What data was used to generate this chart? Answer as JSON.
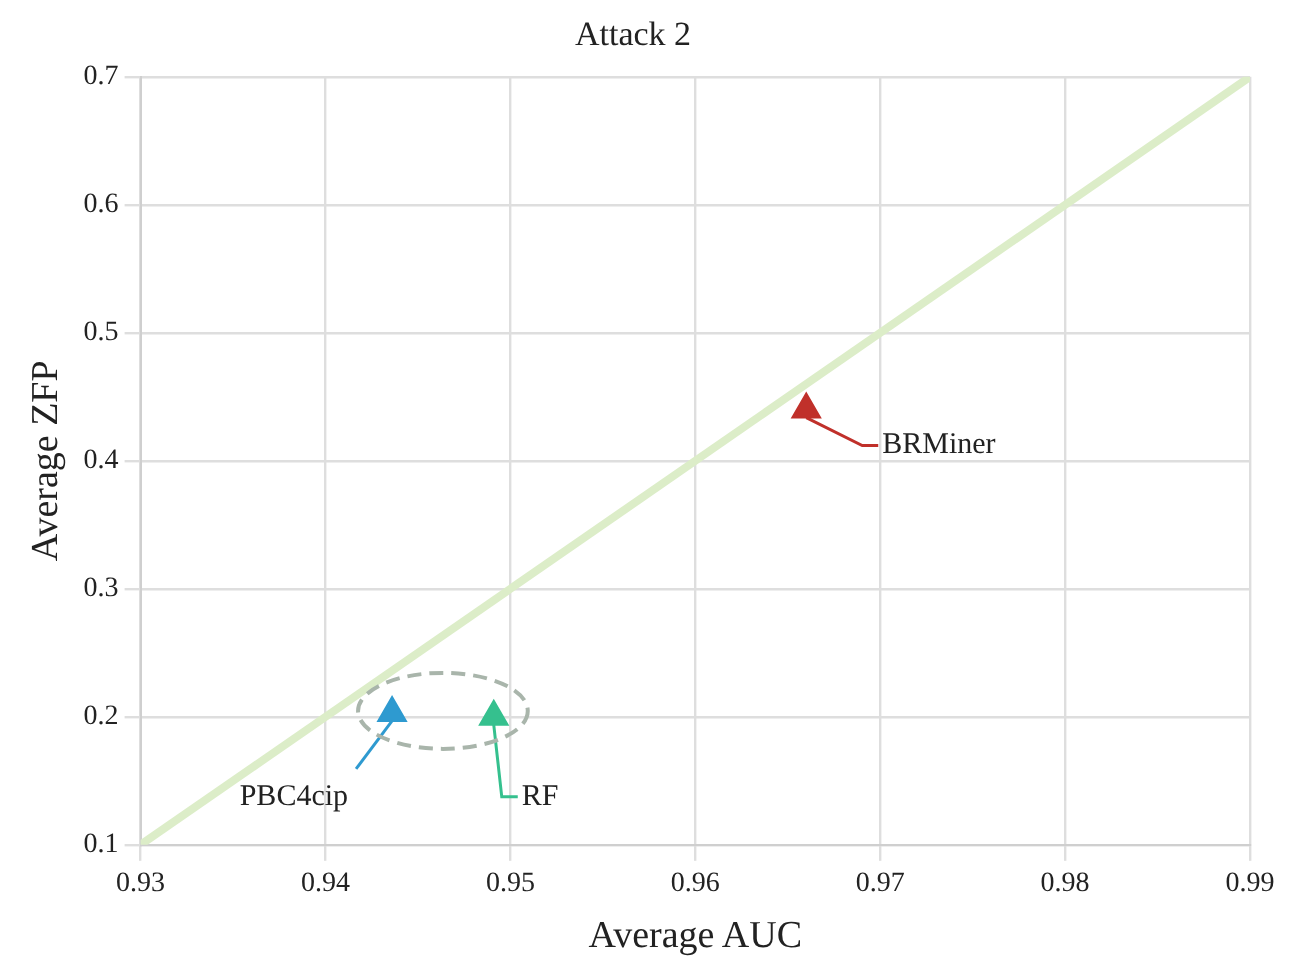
{
  "chart_data": {
    "type": "scatter",
    "title": "Attack 2",
    "xlabel": "Average AUC",
    "ylabel": "Average ZFP",
    "xlim": [
      0.93,
      0.99
    ],
    "xticks": [
      0.93,
      0.94,
      0.95,
      0.96,
      0.97,
      0.98,
      0.99
    ],
    "ylim": [
      0.1,
      0.7
    ],
    "yticks": [
      0.1,
      0.2,
      0.3,
      0.4,
      0.5,
      0.6,
      0.7
    ],
    "grid": true,
    "marker": "triangle",
    "series": [
      {
        "type": "line",
        "color": "#dcedc8",
        "x": [
          0.93,
          0.99
        ],
        "values": [
          0.1,
          0.7
        ],
        "marker": "none"
      },
      {
        "name": "PBC4cip",
        "color": "#2e9ad0",
        "x": [
          0.9436
        ],
        "values": [
          0.203
        ]
      },
      {
        "name": "RF",
        "color": "#35c08e",
        "x": [
          0.9491
        ],
        "values": [
          0.2
        ]
      },
      {
        "name": "BRMiner",
        "color": "#c0302a",
        "x": [
          0.966
        ],
        "values": [
          0.44
        ]
      }
    ]
  }
}
